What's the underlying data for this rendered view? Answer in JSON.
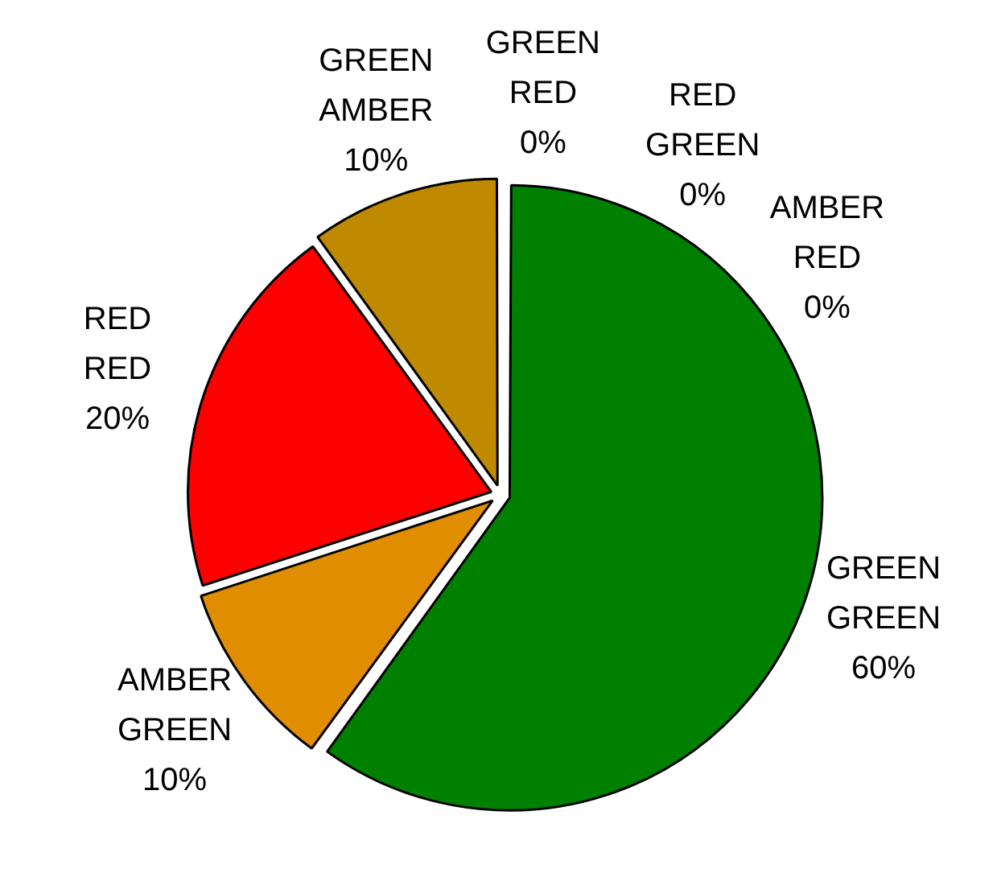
{
  "chart_data": {
    "type": "pie",
    "categories": [
      "GREEN GREEN",
      "AMBER GREEN",
      "RED RED",
      "GREEN AMBER",
      "GREEN RED",
      "RED GREEN",
      "AMBER RED"
    ],
    "values": [
      60,
      10,
      20,
      10,
      0,
      0,
      0
    ],
    "colors": [
      "#008000",
      "#e08e00",
      "#ff0000",
      "#c08a00",
      "#808000",
      "#808000",
      "#ff5000"
    ],
    "value_labels": [
      "60%",
      "10%",
      "20%",
      "10%",
      "0%",
      "0%",
      "0%"
    ],
    "legend": false
  }
}
